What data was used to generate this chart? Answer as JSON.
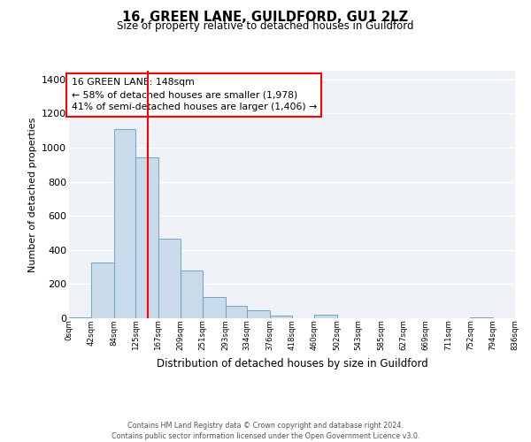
{
  "title": "16, GREEN LANE, GUILDFORD, GU1 2LZ",
  "subtitle": "Size of property relative to detached houses in Guildford",
  "xlabel": "Distribution of detached houses by size in Guildford",
  "ylabel": "Number of detached properties",
  "bar_color": "#c9daea",
  "bar_edge_color": "#6699bb",
  "background_color": "#eef2f7",
  "tick_labels": [
    "0sqm",
    "42sqm",
    "84sqm",
    "125sqm",
    "167sqm",
    "209sqm",
    "251sqm",
    "293sqm",
    "334sqm",
    "376sqm",
    "418sqm",
    "460sqm",
    "502sqm",
    "543sqm",
    "585sqm",
    "627sqm",
    "669sqm",
    "711sqm",
    "752sqm",
    "794sqm",
    "836sqm"
  ],
  "bin_edges": [
    0,
    42,
    84,
    125,
    167,
    209,
    251,
    293,
    334,
    376,
    418,
    460,
    502,
    543,
    585,
    627,
    669,
    711,
    752,
    794,
    836
  ],
  "bar_heights": [
    5,
    325,
    1110,
    945,
    465,
    280,
    125,
    70,
    45,
    18,
    0,
    20,
    0,
    0,
    0,
    0,
    0,
    0,
    5,
    0,
    0
  ],
  "ylim": [
    0,
    1450
  ],
  "yticks": [
    0,
    200,
    400,
    600,
    800,
    1000,
    1200,
    1400
  ],
  "red_line_x": 148,
  "annotation_text": "16 GREEN LANE: 148sqm\n← 58% of detached houses are smaller (1,978)\n41% of semi-detached houses are larger (1,406) →",
  "annotation_box_color": "white",
  "annotation_box_edge_color": "red",
  "footer_line1": "Contains HM Land Registry data © Crown copyright and database right 2024.",
  "footer_line2": "Contains public sector information licensed under the Open Government Licence v3.0.",
  "xlim": [
    0,
    836
  ]
}
